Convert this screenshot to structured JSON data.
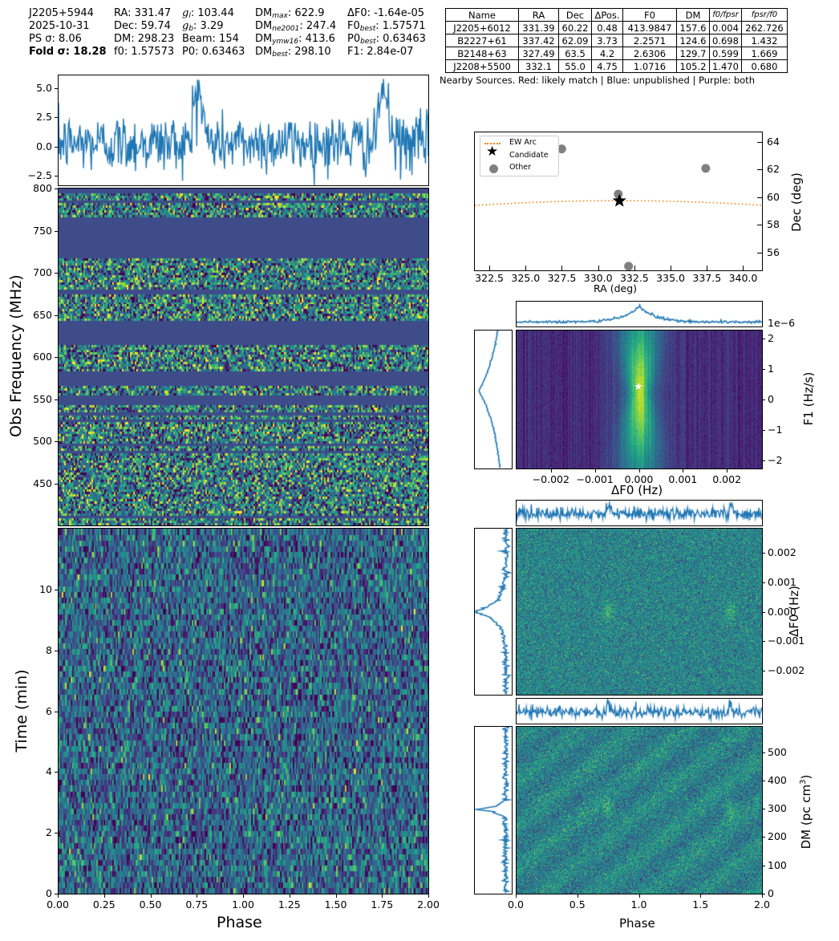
{
  "header": {
    "col1": [
      "J2205+5944",
      "2025-10-31",
      "PS σ: 8.06",
      "Fold σ: 18.28"
    ],
    "col2": [
      "RA: 331.47",
      "Dec: 59.74",
      "DM: 298.23",
      "f0: 1.57573"
    ],
    "col3": [
      {
        "sym": "g",
        "sub": "l",
        "val": ": 103.44"
      },
      {
        "sym": "g",
        "sub": "b",
        "val": ": 3.29"
      },
      {
        "text": "Beam: 154"
      },
      {
        "text": "P0: 0.63463"
      }
    ],
    "col4": [
      {
        "sym": "DM",
        "sub": "max",
        "val": ": 622.9"
      },
      {
        "sym": "DM",
        "sub": "ne2001",
        "val": ": 247.4"
      },
      {
        "sym": "DM",
        "sub": "ymw16",
        "val": ": 413.6"
      },
      {
        "sym": "DM",
        "sub": "best",
        "val": ": 298.10"
      }
    ],
    "col5": [
      {
        "text": "ΔF0: -1.64e-05"
      },
      {
        "sym": "F0",
        "sub": "best",
        "val": ": 1.57571"
      },
      {
        "sym": "P0",
        "sub": "best",
        "val": ": 0.63463"
      },
      {
        "text": "F1: 2.84e-07"
      }
    ]
  },
  "nearby_table": {
    "headers": [
      "Name",
      "RA",
      "Dec",
      "ΔPos.",
      "F0",
      "DM",
      "f0/fpsr",
      "fpsr/f0"
    ],
    "rows": [
      [
        "J2205+6012",
        "331.39",
        "60.22",
        "0.48",
        "413.9847",
        "157.6",
        "0.004",
        "262.726"
      ],
      [
        "B2227+61",
        "337.42",
        "62.09",
        "3.73",
        "2.2571",
        "124.6",
        "0.698",
        "1.432"
      ],
      [
        "B2148+63",
        "327.49",
        "63.5",
        "4.2",
        "2.6306",
        "129.7",
        "0.599",
        "1.669"
      ],
      [
        "J2208+5500",
        "332.1",
        "55.0",
        "4.75",
        "1.0716",
        "105.2",
        "1.470",
        "0.680"
      ]
    ],
    "caption": "Nearby Sources. Red: likely match  |  Blue: unpublished  |  Purple: both"
  },
  "colors": {
    "line": "#1f77b4",
    "arc": "#ff7f0e",
    "other": "#808080",
    "masked": "#3e4c8a"
  },
  "chart_data": [
    {
      "id": "pulse-profile",
      "type": "line",
      "title": "",
      "xlabel": "",
      "ylabel": "",
      "xlim": [
        0,
        2
      ],
      "ylim": [
        -3.3,
        6.1
      ],
      "yticks": [
        "5.0",
        "2.5",
        "0.0",
        "−2.5"
      ],
      "peaks_at_phase": [
        0.74,
        1.74
      ],
      "peak_value": 5.7,
      "noise_range": [
        -3.0,
        4.0
      ]
    },
    {
      "id": "frequency-phase",
      "type": "heatmap",
      "ylabel": "Obs Frequency (MHz)",
      "yticks": [
        "800",
        "750",
        "700",
        "650",
        "600",
        "550",
        "500",
        "450"
      ],
      "ylim": [
        400,
        800
      ],
      "masked_bands_mhz": [
        [
          730,
          767
        ],
        [
          717,
          728
        ],
        [
          642,
          613
        ],
        [
          565,
          583
        ],
        [
          543,
          555
        ]
      ]
    },
    {
      "id": "time-phase",
      "type": "heatmap",
      "xlabel": "Phase",
      "ylabel": "Time (min)",
      "xticks": [
        "0.00",
        "0.25",
        "0.50",
        "0.75",
        "1.00",
        "1.25",
        "1.50",
        "1.75",
        "2.00"
      ],
      "yticks": [
        "10",
        "8",
        "6",
        "4",
        "2",
        "0"
      ],
      "xlim": [
        0,
        2
      ],
      "ylim": [
        0,
        12
      ]
    },
    {
      "id": "sky-position",
      "type": "scatter",
      "xlabel": "RA (deg)",
      "ylabel": "Dec (deg)",
      "xticks": [
        "322.5",
        "325.0",
        "327.5",
        "330.0",
        "332.5",
        "335.0",
        "337.5",
        "340.0"
      ],
      "yticks": [
        "64",
        "62",
        "60",
        "58",
        "56"
      ],
      "xlim": [
        321.5,
        341.3
      ],
      "ylim": [
        54.7,
        64.7
      ],
      "legend": [
        "EW Arc",
        "Candidate",
        "Other"
      ],
      "candidate": {
        "ra": 331.47,
        "dec": 59.74
      },
      "others": [
        {
          "ra": 331.39,
          "dec": 60.22
        },
        {
          "ra": 337.42,
          "dec": 62.09
        },
        {
          "ra": 327.49,
          "dec": 63.5
        },
        {
          "ra": 332.1,
          "dec": 55.0
        }
      ],
      "arc": {
        "dec_at_edges": 59.4,
        "dec_at_center": 59.75
      }
    },
    {
      "id": "f0-f1-search",
      "type": "heatmap",
      "xlabel": "ΔF0 (Hz)",
      "ylabel": "F1 (Hz/s)",
      "offset_label": "1e−6",
      "xticks": [
        "−0.002",
        "−0.001",
        "0.000",
        "0.001",
        "0.002"
      ],
      "yticks": [
        "2",
        "1",
        "0",
        "−1",
        "−2"
      ],
      "xlim": [
        -0.0028,
        0.0028
      ],
      "ylim": [
        -2.25,
        2.25
      ],
      "best": {
        "df0": 0.0,
        "f1": 0.28
      }
    },
    {
      "id": "f0-phase",
      "type": "heatmap",
      "ylabel": "ΔF0 (Hz)",
      "yticks": [
        "0.002",
        "0.001",
        "0.000",
        "−0.001",
        "−0.002"
      ],
      "ylim": [
        -0.0028,
        0.0028
      ],
      "xlim": [
        0,
        2
      ]
    },
    {
      "id": "dm-phase",
      "type": "heatmap",
      "xlabel": "Phase",
      "ylabel": "DM (pc cm³)",
      "xticks": [
        "0.0",
        "0.5",
        "1.0",
        "1.5",
        "2.0"
      ],
      "yticks": [
        "500",
        "400",
        "300",
        "200",
        "100",
        "0"
      ],
      "xlim": [
        0,
        2
      ],
      "ylim": [
        0,
        590
      ],
      "peak_dm": 298
    }
  ],
  "axis_labels": {
    "obs_freq": "Obs Frequency (MHz)",
    "time": "Time (min)",
    "phase": "Phase",
    "ra": "RA (deg)",
    "dec": "Dec (deg)",
    "df0": "ΔF0 (Hz)",
    "f1": "F1 (Hz/s)",
    "dm_prefix": "DM (pc cm",
    "dm_sup": "3",
    "dm_suffix": ")",
    "offset": "1e−6"
  },
  "legend": {
    "arc": "EW Arc",
    "candidate": "Candidate",
    "other": "Other"
  }
}
